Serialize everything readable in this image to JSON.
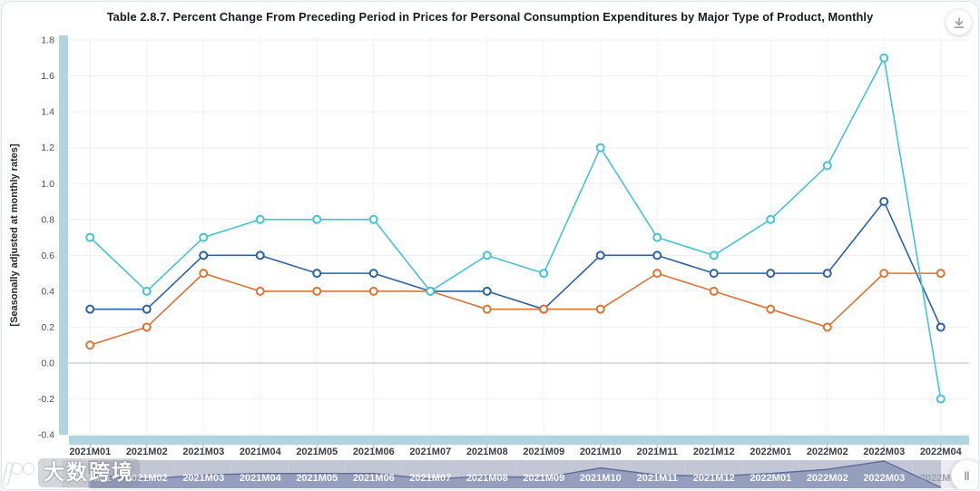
{
  "header": {
    "title": "Table 2.8.7. Percent Change From Preceding Period in Prices for Personal Consumption Expenditures by Major Type of Product, Monthly"
  },
  "chart_data": {
    "type": "line",
    "title": "Table 2.8.7. Percent Change From Preceding Period in Prices for Personal Consumption Expenditures by Major Type of Product, Monthly",
    "ylabel": "[Seasonally adjusted at monthly rates]",
    "xlabel": "",
    "ylim": [
      -0.4,
      1.8
    ],
    "ytick_step": 0.2,
    "yticks": [
      1.8,
      1.6,
      1.4,
      1.2,
      1.0,
      0.8,
      0.6,
      0.4,
      0.2,
      0.0,
      -0.2,
      -0.4
    ],
    "grid": true,
    "legend_position": "none",
    "categories": [
      "2021M01",
      "2021M02",
      "2021M03",
      "2021M04",
      "2021M05",
      "2021M06",
      "2021M07",
      "2021M08",
      "2021M09",
      "2021M10",
      "2021M11",
      "2021M12",
      "2022M01",
      "2022M02",
      "2022M03",
      "2022M04"
    ],
    "series": [
      {
        "name": "blue",
        "color": "#2a62a5",
        "marker": "open-circle",
        "values": [
          0.3,
          0.3,
          0.6,
          0.6,
          0.5,
          0.5,
          0.4,
          0.4,
          0.3,
          0.6,
          0.6,
          0.5,
          0.5,
          0.5,
          0.9,
          0.2
        ]
      },
      {
        "name": "orange",
        "color": "#dd7433",
        "marker": "open-circle",
        "values": [
          0.1,
          0.2,
          0.5,
          0.4,
          0.4,
          0.4,
          0.4,
          0.3,
          0.3,
          0.3,
          0.5,
          0.4,
          0.3,
          0.2,
          0.5,
          0.5
        ]
      },
      {
        "name": "cyan",
        "color": "#44c4d4",
        "marker": "open-circle",
        "values": [
          0.7,
          0.4,
          0.7,
          0.8,
          0.8,
          0.8,
          0.4,
          0.6,
          0.5,
          1.2,
          0.7,
          0.6,
          0.8,
          1.1,
          1.7,
          -0.2
        ]
      }
    ],
    "navigator": {
      "type": "area",
      "values": [
        0.7,
        0.4,
        0.7,
        0.8,
        0.8,
        0.8,
        0.4,
        0.6,
        0.5,
        1.2,
        0.7,
        0.6,
        0.8,
        1.1,
        1.7,
        -0.2
      ],
      "selected_range": [
        "2021M01",
        "2022M04"
      ]
    }
  },
  "navigator": {
    "handle_icon": "‖"
  },
  "watermark": {
    "text": "大数跨境"
  },
  "colors": {
    "scrollbar": "#b2d4e1",
    "grid": "#edeff2",
    "vgrid": "#f0f2f5",
    "zero_line": "#b8bcc3",
    "tick": "#aeb4bb",
    "axis_label": "#3b3e45",
    "ytick_label": "#4a4d52",
    "ytitle": "#26282e",
    "nav_track": "#ececf0",
    "nav_area_fill": "rgba(157,170,201,0.85)",
    "nav_area_line": "#5d6c9e",
    "nav_mask": "rgba(98,110,150,0.30)",
    "nav_label": "rgba(255,255,255,0.92)",
    "nav_label_out": "#99a0ac",
    "nav_separator": "rgba(255,255,255,0.6)"
  }
}
